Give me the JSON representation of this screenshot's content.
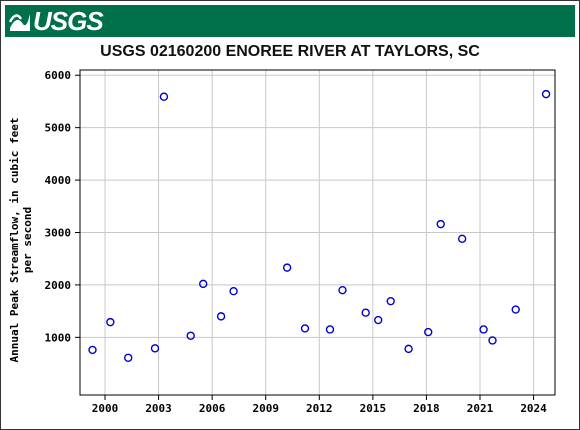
{
  "header": {
    "logo_text": "USGS",
    "banner_color": "#00704a"
  },
  "chart_data": {
    "type": "scatter",
    "title": "USGS 02160200 ENOREE RIVER AT TAYLORS, SC",
    "xlabel": "",
    "ylabel_line1": "Annual Peak Streamflow, in cubic feet",
    "ylabel_line2": "per second",
    "xlim": [
      1998.6,
      2025.2
    ],
    "ylim": [
      -100,
      6100
    ],
    "xticks": [
      2000,
      2003,
      2006,
      2009,
      2012,
      2015,
      2018,
      2021,
      2024
    ],
    "yticks": [
      1000,
      2000,
      3000,
      4000,
      5000,
      6000
    ],
    "grid": true,
    "marker_color": "#0000cc",
    "points": [
      {
        "x": 1999.3,
        "y": 760
      },
      {
        "x": 2000.3,
        "y": 1290
      },
      {
        "x": 2001.3,
        "y": 610
      },
      {
        "x": 2002.8,
        "y": 790
      },
      {
        "x": 2003.3,
        "y": 5590
      },
      {
        "x": 2004.8,
        "y": 1030
      },
      {
        "x": 2005.5,
        "y": 2020
      },
      {
        "x": 2006.5,
        "y": 1400
      },
      {
        "x": 2007.2,
        "y": 1880
      },
      {
        "x": 2010.2,
        "y": 2330
      },
      {
        "x": 2011.2,
        "y": 1170
      },
      {
        "x": 2012.6,
        "y": 1150
      },
      {
        "x": 2013.3,
        "y": 1900
      },
      {
        "x": 2014.6,
        "y": 1470
      },
      {
        "x": 2015.3,
        "y": 1330
      },
      {
        "x": 2016.0,
        "y": 1690
      },
      {
        "x": 2017.0,
        "y": 780
      },
      {
        "x": 2018.1,
        "y": 1100
      },
      {
        "x": 2018.8,
        "y": 3160
      },
      {
        "x": 2020.0,
        "y": 2880
      },
      {
        "x": 2021.2,
        "y": 1150
      },
      {
        "x": 2021.7,
        "y": 940
      },
      {
        "x": 2023.0,
        "y": 1530
      },
      {
        "x": 2024.7,
        "y": 5640
      }
    ]
  }
}
